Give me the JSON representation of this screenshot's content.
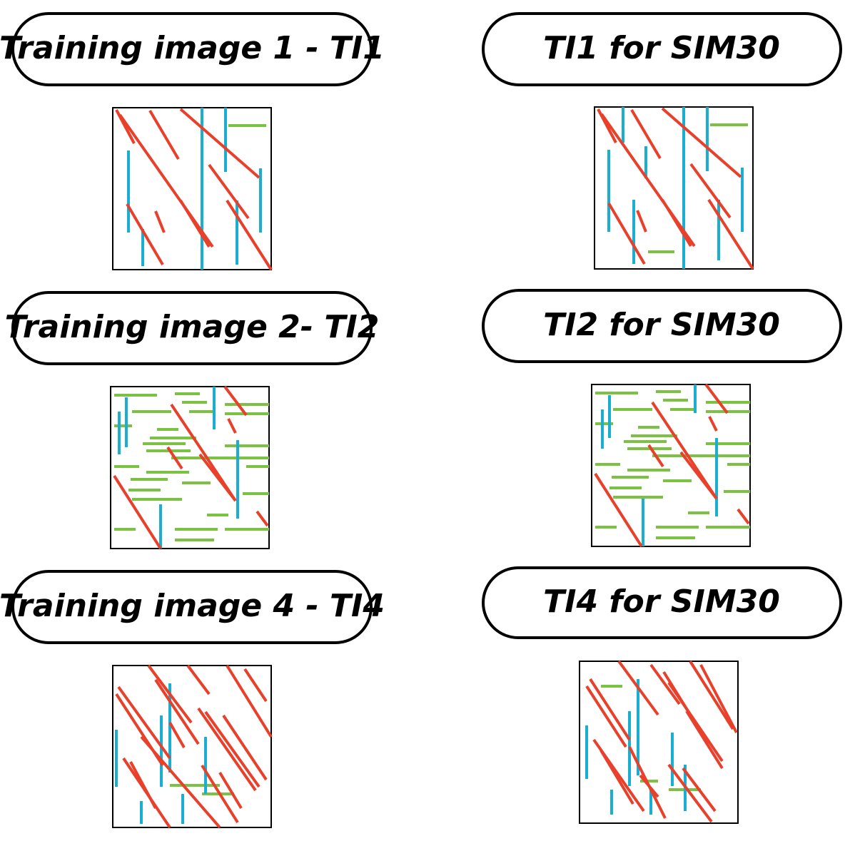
{
  "panels": [
    {
      "label": "Training image 1 - TI1"
    },
    {
      "label": "TI1 for SIM30"
    },
    {
      "label": "Training image 2- TI2"
    },
    {
      "label": "TI2 for SIM30"
    },
    {
      "label": "Training image 4 - TI4"
    },
    {
      "label": "TI4 for SIM30"
    }
  ]
}
